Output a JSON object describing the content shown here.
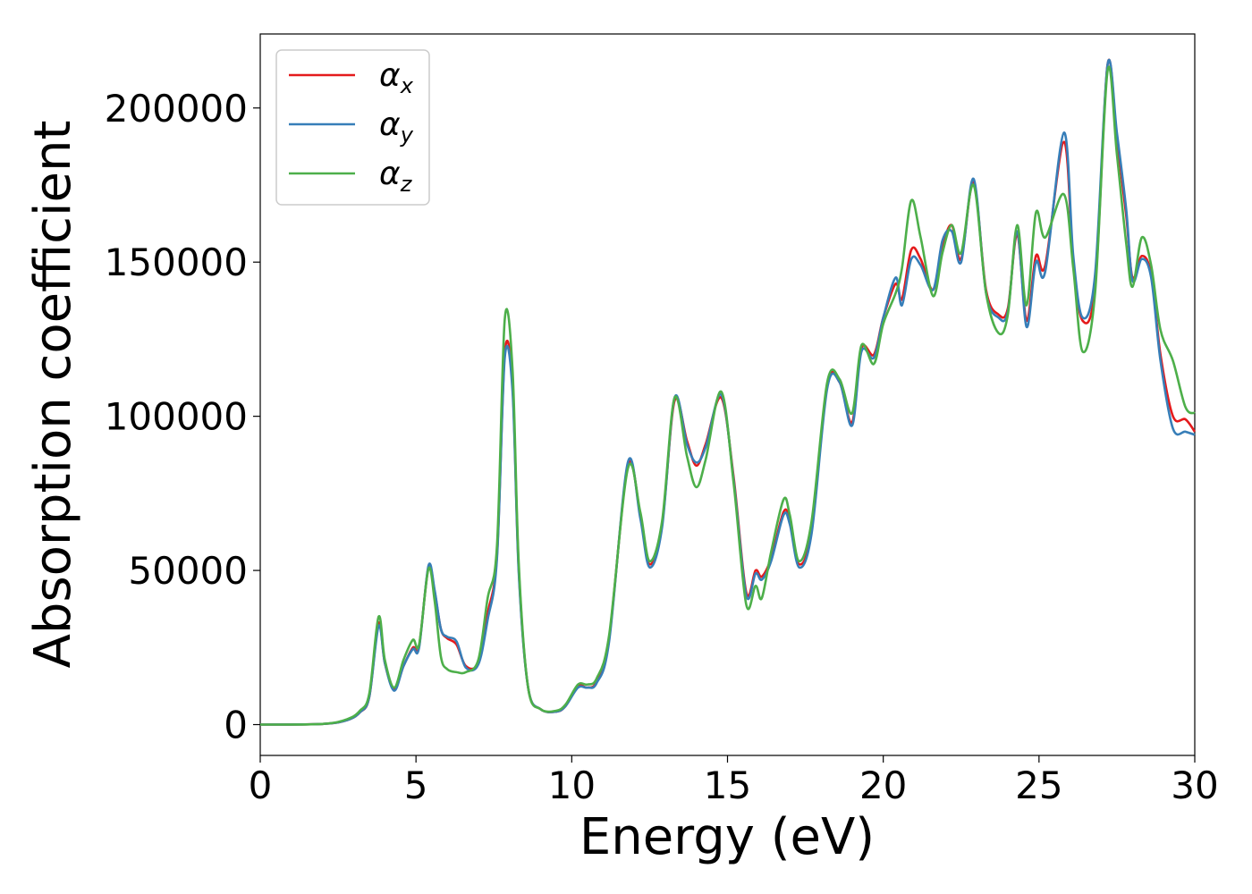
{
  "chart_data": {
    "type": "line",
    "xlabel": "Energy (eV)",
    "ylabel": "Absorption coefficient",
    "xlim": [
      0,
      30
    ],
    "ylim": [
      -10000,
      224000
    ],
    "xticks": [
      0,
      5,
      10,
      15,
      20,
      25,
      30
    ],
    "yticks": [
      0,
      50000,
      100000,
      150000,
      200000
    ],
    "xtick_labels": [
      "0",
      "5",
      "10",
      "15",
      "20",
      "25",
      "30"
    ],
    "ytick_labels": [
      "0",
      "50000",
      "100000",
      "150000",
      "200000"
    ],
    "grid": false,
    "legend_position": "top-left",
    "series": [
      {
        "name": "α",
        "subscript": "x",
        "color": "#e41a1c",
        "points": [
          [
            0,
            0
          ],
          [
            2,
            200
          ],
          [
            2.8,
            1500
          ],
          [
            3.2,
            4000
          ],
          [
            3.5,
            9000
          ],
          [
            3.8,
            33000
          ],
          [
            4.0,
            20000
          ],
          [
            4.3,
            11500
          ],
          [
            4.6,
            19000
          ],
          [
            4.9,
            25000
          ],
          [
            5.1,
            25500
          ],
          [
            5.4,
            51000
          ],
          [
            5.6,
            43000
          ],
          [
            5.8,
            31000
          ],
          [
            6.0,
            28000
          ],
          [
            6.3,
            26000
          ],
          [
            6.6,
            19000
          ],
          [
            7.0,
            20000
          ],
          [
            7.3,
            36000
          ],
          [
            7.6,
            55000
          ],
          [
            7.85,
            120500
          ],
          [
            8.1,
            110000
          ],
          [
            8.3,
            50000
          ],
          [
            8.6,
            12000
          ],
          [
            9.0,
            5000
          ],
          [
            9.5,
            4200
          ],
          [
            9.8,
            6000
          ],
          [
            10.2,
            12500
          ],
          [
            10.5,
            12000
          ],
          [
            10.8,
            14000
          ],
          [
            11.2,
            28000
          ],
          [
            11.8,
            84000
          ],
          [
            12.2,
            68000
          ],
          [
            12.5,
            52000
          ],
          [
            12.9,
            65000
          ],
          [
            13.3,
            105000
          ],
          [
            13.7,
            92000
          ],
          [
            14.0,
            84000
          ],
          [
            14.3,
            91000
          ],
          [
            14.8,
            106000
          ],
          [
            15.2,
            80000
          ],
          [
            15.6,
            43000
          ],
          [
            15.9,
            50000
          ],
          [
            16.1,
            48000
          ],
          [
            16.4,
            54000
          ],
          [
            16.8,
            69000
          ],
          [
            17.0,
            66000
          ],
          [
            17.3,
            52000
          ],
          [
            17.7,
            63000
          ],
          [
            18.2,
            110000
          ],
          [
            18.6,
            111000
          ],
          [
            19.0,
            98000
          ],
          [
            19.3,
            122000
          ],
          [
            19.7,
            120000
          ],
          [
            20.0,
            132000
          ],
          [
            20.4,
            143000
          ],
          [
            20.6,
            138000
          ],
          [
            20.9,
            154000
          ],
          [
            21.2,
            151000
          ],
          [
            21.6,
            141000
          ],
          [
            21.9,
            155000
          ],
          [
            22.2,
            162000
          ],
          [
            22.5,
            151000
          ],
          [
            22.9,
            176000
          ],
          [
            23.3,
            141000
          ],
          [
            23.7,
            133000
          ],
          [
            24.0,
            135000
          ],
          [
            24.3,
            159000
          ],
          [
            24.6,
            131000
          ],
          [
            24.9,
            152000
          ],
          [
            25.2,
            149000
          ],
          [
            25.8,
            189000
          ],
          [
            26.1,
            150000
          ],
          [
            26.4,
            131000
          ],
          [
            26.8,
            142000
          ],
          [
            27.2,
            214000
          ],
          [
            27.5,
            190000
          ],
          [
            27.8,
            165000
          ],
          [
            28.0,
            145000
          ],
          [
            28.3,
            152000
          ],
          [
            28.6,
            146000
          ],
          [
            28.9,
            120000
          ],
          [
            29.3,
            100000
          ],
          [
            29.7,
            99000
          ],
          [
            30.0,
            95000
          ]
        ]
      },
      {
        "name": "α",
        "subscript": "y",
        "color": "#377eb8",
        "points": [
          [
            0,
            0
          ],
          [
            2,
            200
          ],
          [
            2.8,
            1500
          ],
          [
            3.2,
            4000
          ],
          [
            3.5,
            9000
          ],
          [
            3.8,
            32000
          ],
          [
            4.0,
            20000
          ],
          [
            4.3,
            11000
          ],
          [
            4.6,
            19000
          ],
          [
            4.9,
            24500
          ],
          [
            5.1,
            25000
          ],
          [
            5.4,
            51500
          ],
          [
            5.6,
            43500
          ],
          [
            5.8,
            31000
          ],
          [
            6.0,
            28500
          ],
          [
            6.3,
            27000
          ],
          [
            6.6,
            18500
          ],
          [
            7.0,
            19500
          ],
          [
            7.3,
            34000
          ],
          [
            7.6,
            54000
          ],
          [
            7.85,
            119000
          ],
          [
            8.1,
            108000
          ],
          [
            8.3,
            49000
          ],
          [
            8.6,
            12000
          ],
          [
            9.0,
            5000
          ],
          [
            9.5,
            4200
          ],
          [
            9.8,
            6000
          ],
          [
            10.2,
            12000
          ],
          [
            10.5,
            12000
          ],
          [
            10.8,
            13500
          ],
          [
            11.2,
            27000
          ],
          [
            11.8,
            85000
          ],
          [
            12.2,
            67000
          ],
          [
            12.5,
            51000
          ],
          [
            12.9,
            64000
          ],
          [
            13.3,
            106000
          ],
          [
            13.7,
            91000
          ],
          [
            14.0,
            85000
          ],
          [
            14.3,
            90000
          ],
          [
            14.8,
            107000
          ],
          [
            15.2,
            79000
          ],
          [
            15.6,
            42000
          ],
          [
            15.9,
            49000
          ],
          [
            16.1,
            47000
          ],
          [
            16.4,
            53000
          ],
          [
            16.8,
            68000
          ],
          [
            17.0,
            65000
          ],
          [
            17.3,
            51000
          ],
          [
            17.7,
            62000
          ],
          [
            18.2,
            109000
          ],
          [
            18.6,
            111000
          ],
          [
            19.0,
            97000
          ],
          [
            19.3,
            121000
          ],
          [
            19.7,
            119000
          ],
          [
            20.0,
            132000
          ],
          [
            20.4,
            145000
          ],
          [
            20.6,
            136000
          ],
          [
            20.9,
            151000
          ],
          [
            21.2,
            149000
          ],
          [
            21.6,
            141000
          ],
          [
            21.9,
            157000
          ],
          [
            22.2,
            160000
          ],
          [
            22.5,
            150000
          ],
          [
            22.9,
            177000
          ],
          [
            23.3,
            140000
          ],
          [
            23.7,
            132000
          ],
          [
            24.0,
            134000
          ],
          [
            24.3,
            160000
          ],
          [
            24.6,
            129000
          ],
          [
            24.9,
            150000
          ],
          [
            25.2,
            147000
          ],
          [
            25.8,
            192000
          ],
          [
            26.1,
            152000
          ],
          [
            26.4,
            132000
          ],
          [
            26.8,
            146000
          ],
          [
            27.2,
            214000
          ],
          [
            27.5,
            192000
          ],
          [
            27.8,
            167000
          ],
          [
            28.0,
            144000
          ],
          [
            28.3,
            151000
          ],
          [
            28.6,
            145000
          ],
          [
            28.9,
            118000
          ],
          [
            29.3,
            96000
          ],
          [
            29.7,
            95000
          ],
          [
            30.0,
            94000
          ]
        ]
      },
      {
        "name": "α",
        "subscript": "z",
        "color": "#4daf4a",
        "points": [
          [
            0,
            0
          ],
          [
            2,
            200
          ],
          [
            2.8,
            1800
          ],
          [
            3.2,
            4500
          ],
          [
            3.5,
            10000
          ],
          [
            3.8,
            35000
          ],
          [
            4.0,
            21000
          ],
          [
            4.3,
            12000
          ],
          [
            4.6,
            21000
          ],
          [
            4.9,
            27500
          ],
          [
            5.1,
            26000
          ],
          [
            5.4,
            50500
          ],
          [
            5.6,
            40000
          ],
          [
            5.8,
            22000
          ],
          [
            6.0,
            18000
          ],
          [
            6.3,
            17000
          ],
          [
            6.6,
            17000
          ],
          [
            7.0,
            21000
          ],
          [
            7.3,
            41000
          ],
          [
            7.6,
            58000
          ],
          [
            7.85,
            131500
          ],
          [
            8.1,
            115000
          ],
          [
            8.3,
            52000
          ],
          [
            8.6,
            12000
          ],
          [
            9.0,
            5000
          ],
          [
            9.5,
            4500
          ],
          [
            9.8,
            6500
          ],
          [
            10.2,
            13000
          ],
          [
            10.5,
            13000
          ],
          [
            10.8,
            15000
          ],
          [
            11.2,
            29000
          ],
          [
            11.8,
            83000
          ],
          [
            12.2,
            69000
          ],
          [
            12.5,
            53000
          ],
          [
            12.9,
            66000
          ],
          [
            13.3,
            106000
          ],
          [
            13.7,
            87000
          ],
          [
            14.0,
            77000
          ],
          [
            14.3,
            86000
          ],
          [
            14.8,
            108000
          ],
          [
            15.2,
            78000
          ],
          [
            15.6,
            39000
          ],
          [
            15.9,
            45000
          ],
          [
            16.1,
            41000
          ],
          [
            16.4,
            56000
          ],
          [
            16.8,
            73000
          ],
          [
            17.0,
            68000
          ],
          [
            17.3,
            53000
          ],
          [
            17.7,
            66000
          ],
          [
            18.2,
            111000
          ],
          [
            18.6,
            112000
          ],
          [
            19.0,
            101000
          ],
          [
            19.3,
            123000
          ],
          [
            19.7,
            117000
          ],
          [
            20.0,
            130000
          ],
          [
            20.4,
            140000
          ],
          [
            20.6,
            148000
          ],
          [
            20.9,
            170000
          ],
          [
            21.2,
            158000
          ],
          [
            21.6,
            139000
          ],
          [
            21.9,
            153000
          ],
          [
            22.2,
            162000
          ],
          [
            22.5,
            153000
          ],
          [
            22.9,
            175000
          ],
          [
            23.3,
            140000
          ],
          [
            23.7,
            127000
          ],
          [
            24.0,
            133000
          ],
          [
            24.3,
            162000
          ],
          [
            24.6,
            136000
          ],
          [
            24.9,
            166000
          ],
          [
            25.2,
            158000
          ],
          [
            25.8,
            172000
          ],
          [
            26.1,
            148000
          ],
          [
            26.4,
            121000
          ],
          [
            26.8,
            140000
          ],
          [
            27.2,
            212000
          ],
          [
            27.5,
            185000
          ],
          [
            27.8,
            156000
          ],
          [
            28.0,
            142000
          ],
          [
            28.3,
            158000
          ],
          [
            28.6,
            149000
          ],
          [
            28.9,
            128000
          ],
          [
            29.3,
            118000
          ],
          [
            29.7,
            103000
          ],
          [
            30.0,
            101000
          ]
        ]
      }
    ]
  }
}
